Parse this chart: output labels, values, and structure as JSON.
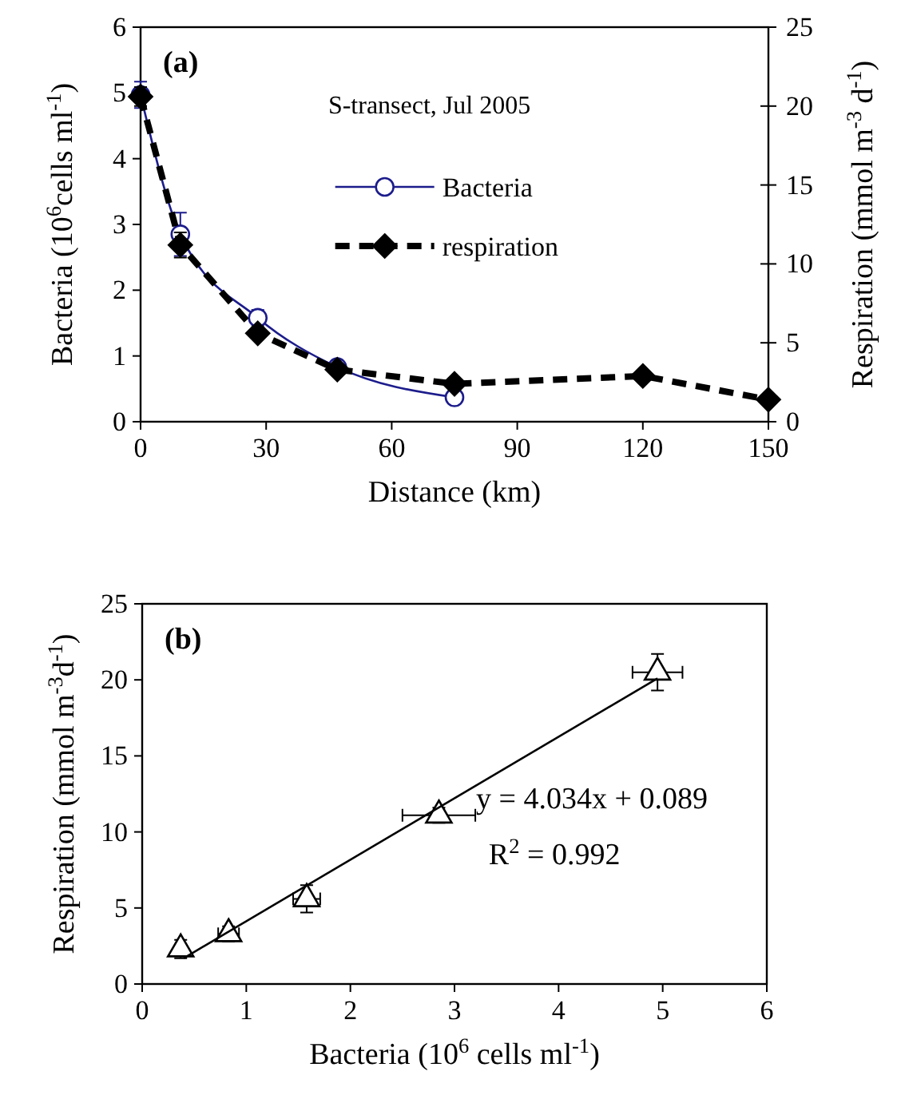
{
  "chart_data": [
    {
      "type": "line",
      "title": "(a)",
      "xlabel": "Distance (km)",
      "ylabel": "Bacteria (10$^{6}$cells ml$^{-1}$)",
      "y2label": "Respiration (mmol m$^{-3}$ d$^{-1}$)",
      "annotations": [
        "S-transect, Jul 2005"
      ],
      "xlim": [
        0,
        150
      ],
      "xticks": [
        0,
        30,
        60,
        90,
        120,
        150
      ],
      "ylim": [
        0,
        6
      ],
      "yticks": [
        0,
        1,
        2,
        3,
        4,
        5,
        6
      ],
      "y2lim": [
        0,
        25
      ],
      "y2ticks": [
        0,
        5,
        10,
        15,
        20,
        25
      ],
      "legend": "top",
      "grid": false,
      "series": [
        {
          "name": "Bacteria",
          "color": "#1c1c8c",
          "marker": "circle",
          "line_style": "solid",
          "x": [
            0,
            9.5,
            28,
            47,
            75
          ],
          "values": [
            4.97,
            2.85,
            1.58,
            0.83,
            0.37
          ],
          "errors": [
            0.2,
            0.33,
            0.12,
            null,
            null
          ]
        },
        {
          "name": "respiration",
          "color": "#000000",
          "marker": "diamond",
          "line_style": "dashed",
          "axis": "y2",
          "x": [
            0,
            9.5,
            28,
            47,
            75,
            120,
            150
          ],
          "values": [
            20.6,
            11.2,
            5.6,
            3.3,
            2.4,
            2.9,
            1.4
          ],
          "errors": [
            0.6,
            0.8,
            null,
            null,
            null,
            null,
            null
          ]
        }
      ]
    },
    {
      "type": "scatter",
      "title": "(b)",
      "xlabel": "Bacteria (10$^{6}$ cells ml$^{-1}$)",
      "ylabel": "Respiration (mmol m$^{-3}$d$^{-1}$)",
      "annotations": [
        "y = 4.034x + 0.089",
        "R$^{2}$ = 0.992"
      ],
      "xlim": [
        0,
        6
      ],
      "xticks": [
        0,
        1,
        2,
        3,
        4,
        5,
        6
      ],
      "ylim": [
        0,
        25
      ],
      "yticks": [
        0,
        5,
        10,
        15,
        20,
        25
      ],
      "grid": false,
      "legend": false,
      "series": [
        {
          "color": "#000000",
          "marker": "triangle",
          "x": [
            0.37,
            0.83,
            1.58,
            2.85,
            4.95
          ],
          "values": [
            2.3,
            3.3,
            5.6,
            11.1,
            20.5
          ],
          "errors": [
            0.6,
            0.5,
            0.9,
            0.5,
            1.2
          ],
          "xerrors": [
            null,
            0.1,
            0.13,
            0.35,
            0.24
          ]
        },
        {
          "type": "line",
          "color": "#000000",
          "marker": "none",
          "line_style": "solid",
          "x": [
            0.4,
            4.95
          ],
          "values": [
            1.7,
            20.1
          ]
        }
      ]
    }
  ]
}
